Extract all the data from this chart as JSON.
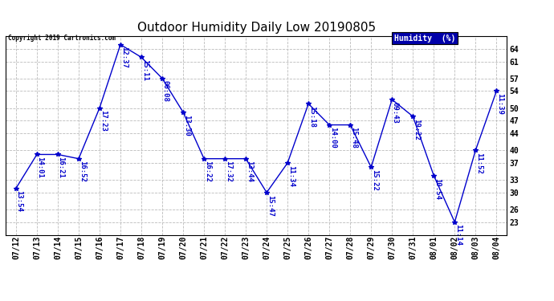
{
  "title": "Outdoor Humidity Daily Low 20190805",
  "copyright": "Copyright 2019 Cartronics.com",
  "legend_label": "Humidity  (%)",
  "dates": [
    "07/12",
    "07/13",
    "07/14",
    "07/15",
    "07/16",
    "07/17",
    "07/18",
    "07/19",
    "07/20",
    "07/21",
    "07/22",
    "07/23",
    "07/24",
    "07/25",
    "07/26",
    "07/27",
    "07/28",
    "07/29",
    "07/30",
    "07/31",
    "08/01",
    "08/02",
    "08/03",
    "08/04"
  ],
  "values": [
    31,
    39,
    39,
    38,
    50,
    65,
    62,
    57,
    49,
    38,
    38,
    38,
    30,
    37,
    51,
    46,
    46,
    36,
    52,
    48,
    34,
    23,
    40,
    54
  ],
  "times": [
    "13:54",
    "14:01",
    "16:21",
    "16:52",
    "17:23",
    "12:37",
    "15:11",
    "06:08",
    "13:30",
    "16:22",
    "17:32",
    "13:44",
    "15:47",
    "11:34",
    "15:18",
    "14:00",
    "15:48",
    "15:22",
    "09:43",
    "19:22",
    "10:54",
    "11:14",
    "11:52",
    "11:39"
  ],
  "line_color": "#0000cc",
  "marker": "*",
  "marker_size": 4,
  "background_color": "#ffffff",
  "grid_color": "#bbbbbb",
  "ylim": [
    20,
    67
  ],
  "yticks": [
    23,
    26,
    30,
    33,
    37,
    40,
    44,
    47,
    50,
    54,
    57,
    61,
    64
  ],
  "title_fontsize": 11,
  "label_fontsize": 6.5,
  "tick_fontsize": 7,
  "legend_bg": "#0000aa",
  "legend_fg": "#ffffff",
  "fig_width": 6.9,
  "fig_height": 3.75,
  "dpi": 100
}
